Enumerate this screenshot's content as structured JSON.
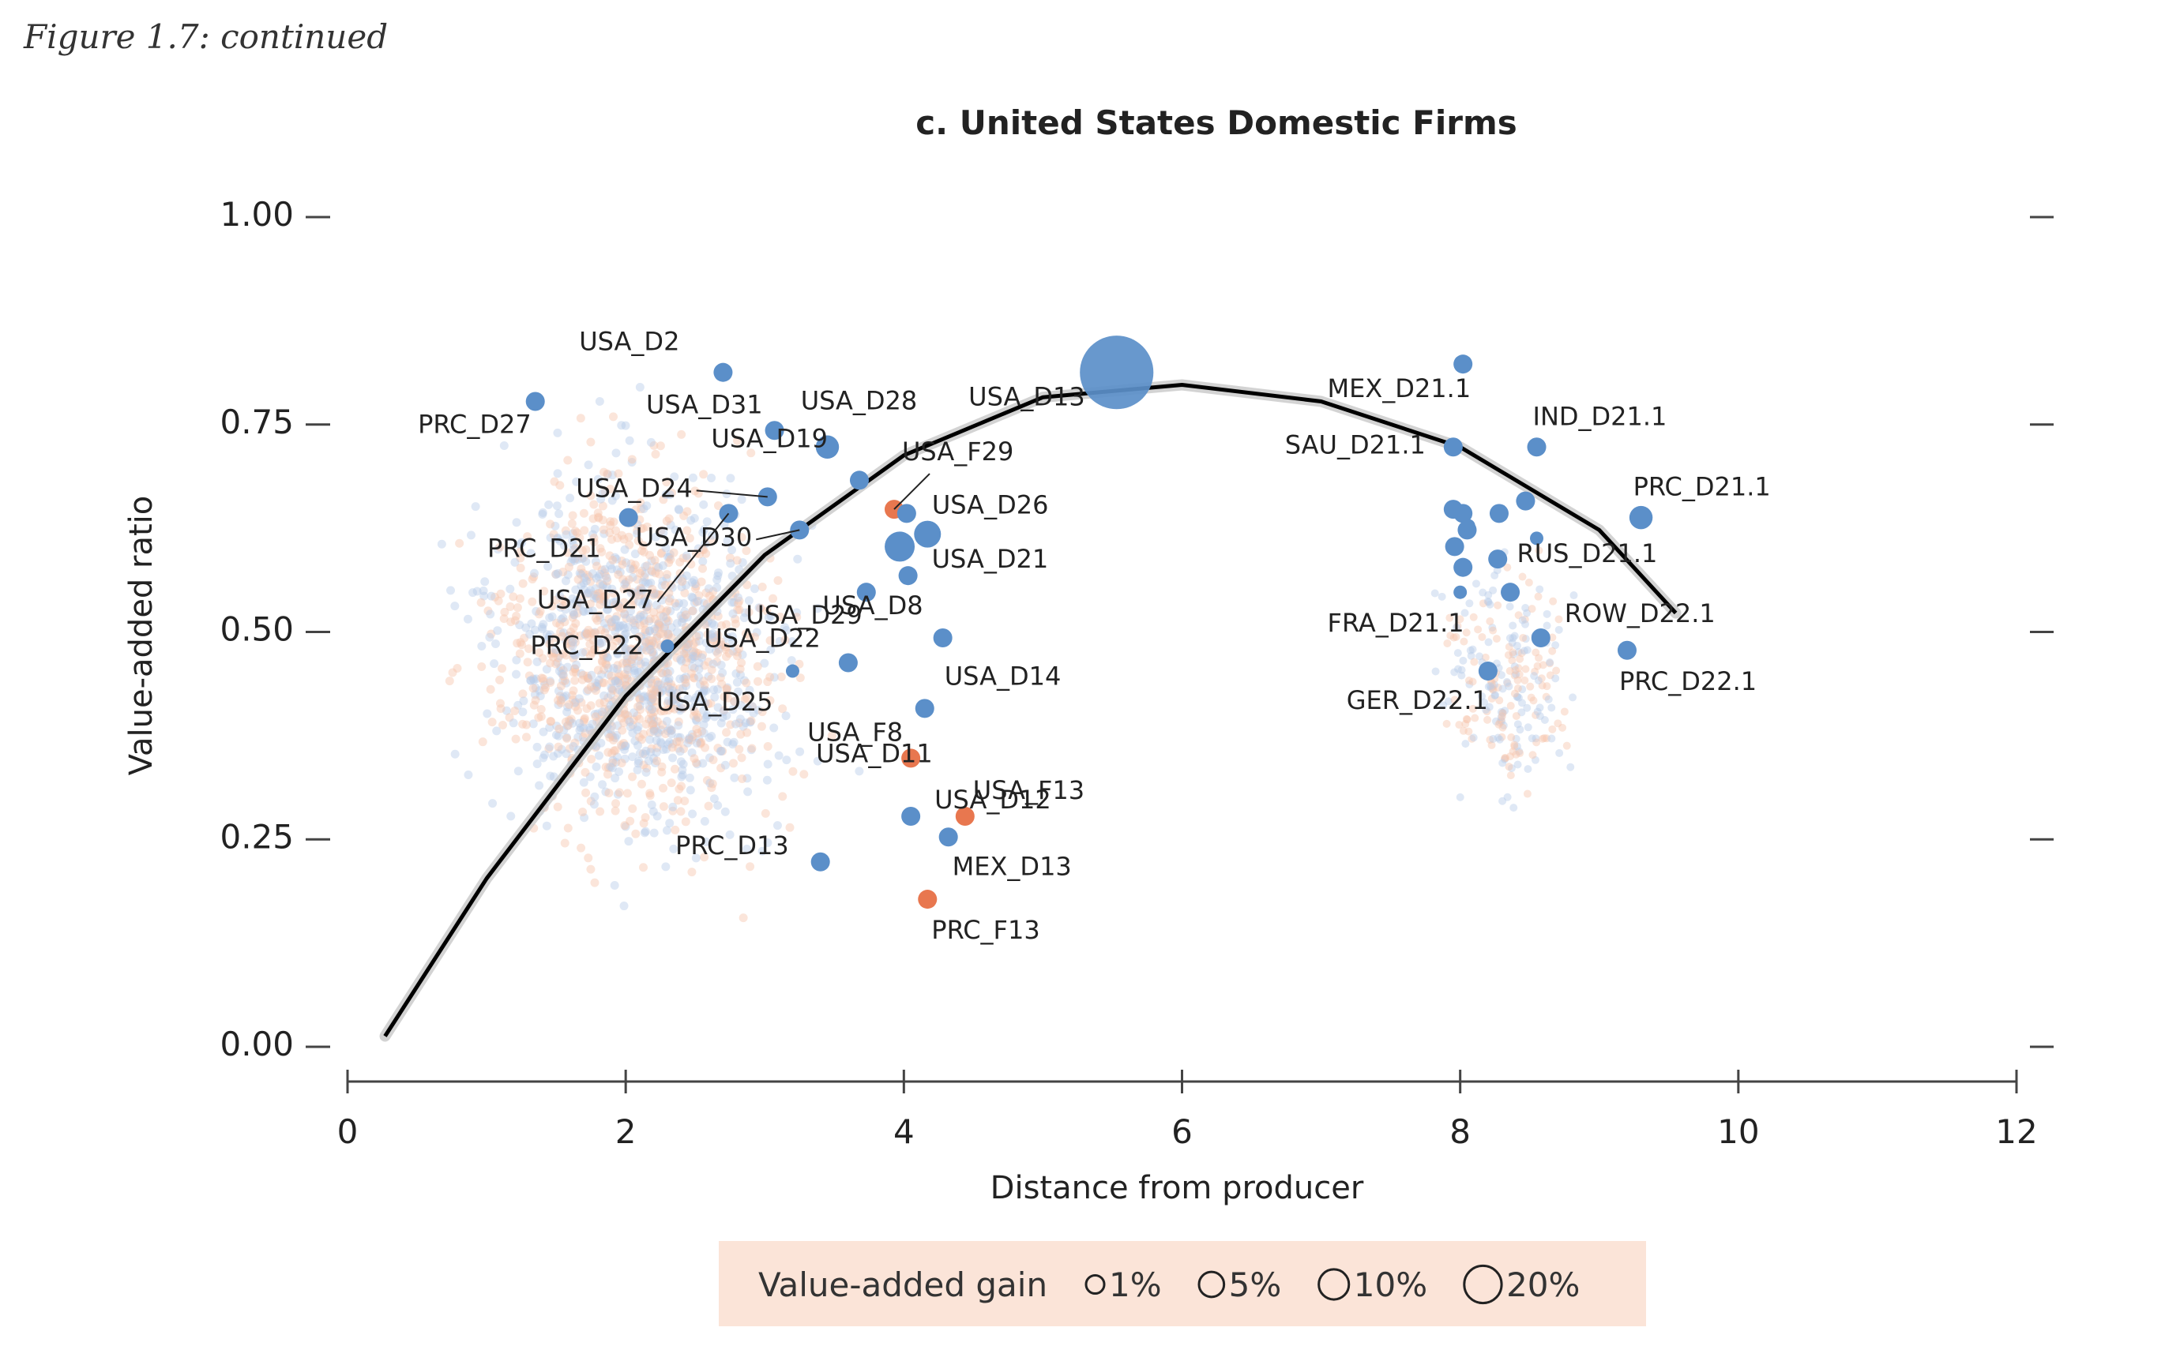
{
  "figure_caption": "Figure 1.7: continued",
  "chart_data": {
    "type": "scatter",
    "title": "c. United States Domestic Firms",
    "xlabel": "Distance from producer",
    "ylabel": "Value-added ratio",
    "xlim": [
      0,
      12
    ],
    "ylim": [
      0,
      1
    ],
    "x_ticks": [
      "0",
      "2",
      "4",
      "6",
      "8",
      "10",
      "12"
    ],
    "y_ticks": [
      "0.00",
      "0.25",
      "0.50",
      "0.75",
      "1.00"
    ],
    "colors": {
      "domestic": "#5b8fc9",
      "foreign": "#e8774f",
      "curve": "#000000",
      "background_domestic": "#b9cde8",
      "background_foreign": "#f6c5ad"
    },
    "legend": {
      "title": "Value-added gain",
      "entries": [
        {
          "label": "1%",
          "value": 1
        },
        {
          "label": "5%",
          "value": 5
        },
        {
          "label": "10%",
          "value": 10
        },
        {
          "label": "20%",
          "value": 20
        }
      ]
    },
    "fit_curve": [
      {
        "x": 0.27,
        "y": 0.01
      },
      {
        "x": 1.0,
        "y": 0.2
      },
      {
        "x": 2.0,
        "y": 0.42
      },
      {
        "x": 3.0,
        "y": 0.59
      },
      {
        "x": 4.0,
        "y": 0.71
      },
      {
        "x": 5.0,
        "y": 0.78
      },
      {
        "x": 6.0,
        "y": 0.795
      },
      {
        "x": 7.0,
        "y": 0.775
      },
      {
        "x": 8.0,
        "y": 0.72
      },
      {
        "x": 9.0,
        "y": 0.62
      },
      {
        "x": 9.55,
        "y": 0.52
      }
    ],
    "points": [
      {
        "label": "USA_D2",
        "x": 2.7,
        "y": 0.81,
        "type": "domestic",
        "gain": 2
      },
      {
        "label": "PRC_D27",
        "x": 1.35,
        "y": 0.775,
        "type": "domestic",
        "gain": 2
      },
      {
        "label": "USA_D31",
        "x": 3.07,
        "y": 0.74,
        "type": "domestic",
        "gain": 2
      },
      {
        "label": "USA_D28",
        "x": 3.45,
        "y": 0.72,
        "type": "domestic",
        "gain": 3
      },
      {
        "label": "USA_D13",
        "x": 5.53,
        "y": 0.81,
        "type": "domestic",
        "gain": 30
      },
      {
        "label": "USA_F29",
        "x": 3.93,
        "y": 0.645,
        "type": "foreign",
        "gain": 2
      },
      {
        "label": "USA_D19",
        "x": 3.68,
        "y": 0.68,
        "type": "domestic",
        "gain": 2
      },
      {
        "label": "USA_D24",
        "x": 3.02,
        "y": 0.66,
        "type": "domestic",
        "gain": 2
      },
      {
        "label": "USA_D26",
        "x": 4.02,
        "y": 0.64,
        "type": "domestic",
        "gain": 2
      },
      {
        "label": "PRC_D21",
        "x": 2.02,
        "y": 0.635,
        "type": "domestic",
        "gain": 2
      },
      {
        "label": "USA_D30",
        "x": 3.25,
        "y": 0.62,
        "type": "domestic",
        "gain": 2
      },
      {
        "label": "USA_D27",
        "x": 2.74,
        "y": 0.64,
        "type": "domestic",
        "gain": 2
      },
      {
        "label": "",
        "x": 4.17,
        "y": 0.615,
        "type": "domestic",
        "gain": 4
      },
      {
        "label": "",
        "x": 3.97,
        "y": 0.6,
        "type": "domestic",
        "gain": 5
      },
      {
        "label": "USA_D29",
        "x": 3.73,
        "y": 0.545,
        "type": "domestic",
        "gain": 2
      },
      {
        "label": "USA_D21",
        "x": 4.03,
        "y": 0.565,
        "type": "domestic",
        "gain": 2
      },
      {
        "label": "USA_D8",
        "x": 4.28,
        "y": 0.49,
        "type": "domestic",
        "gain": 2
      },
      {
        "label": "USA_D22",
        "x": 3.6,
        "y": 0.46,
        "type": "domestic",
        "gain": 2
      },
      {
        "label": "PRC_D22",
        "x": 2.3,
        "y": 0.48,
        "type": "domestic",
        "gain": 1
      },
      {
        "label": "USA_D25",
        "x": 3.2,
        "y": 0.45,
        "type": "domestic",
        "gain": 1
      },
      {
        "label": "USA_D14",
        "x": 4.15,
        "y": 0.405,
        "type": "domestic",
        "gain": 2
      },
      {
        "label": "USA_F8",
        "x": 4.05,
        "y": 0.345,
        "type": "foreign",
        "gain": 2
      },
      {
        "label": "USA_D12",
        "x": 4.05,
        "y": 0.275,
        "type": "domestic",
        "gain": 2
      },
      {
        "label": "USA_F13",
        "x": 4.44,
        "y": 0.275,
        "type": "foreign",
        "gain": 2
      },
      {
        "label": "USA_D11",
        "x": 4.32,
        "y": 0.25,
        "type": "domestic",
        "gain": 2
      },
      {
        "label": "PRC_D13",
        "x": 3.4,
        "y": 0.22,
        "type": "domestic",
        "gain": 2
      },
      {
        "label": "MEX_D13",
        "x": 4.32,
        "y": 0.25,
        "type": "domestic",
        "gain": 0
      },
      {
        "label": "PRC_F13",
        "x": 4.17,
        "y": 0.175,
        "type": "foreign",
        "gain": 2
      },
      {
        "label": "MEX_D21.1",
        "x": 8.02,
        "y": 0.82,
        "type": "domestic",
        "gain": 2
      },
      {
        "label": "IND_D21.1",
        "x": 8.55,
        "y": 0.72,
        "type": "domestic",
        "gain": 2
      },
      {
        "label": "SAU_D21.1",
        "x": 7.95,
        "y": 0.72,
        "type": "domestic",
        "gain": 2
      },
      {
        "label": "PRC_D21.1",
        "x": 9.3,
        "y": 0.635,
        "type": "domestic",
        "gain": 3
      },
      {
        "label": "RUS_D21.1",
        "x": 8.55,
        "y": 0.61,
        "type": "domestic",
        "gain": 1
      },
      {
        "label": "FRA_D21.1",
        "x": 8.0,
        "y": 0.545,
        "type": "domestic",
        "gain": 1
      },
      {
        "label": "ROW_D22.1",
        "x": 8.58,
        "y": 0.49,
        "type": "domestic",
        "gain": 2
      },
      {
        "label": "PRC_D22.1",
        "x": 9.2,
        "y": 0.475,
        "type": "domestic",
        "gain": 2
      },
      {
        "label": "GER_D22.1",
        "x": 8.2,
        "y": 0.45,
        "type": "domestic",
        "gain": 2
      },
      {
        "label": "",
        "x": 7.95,
        "y": 0.645,
        "type": "domestic",
        "gain": 2
      },
      {
        "label": "",
        "x": 8.02,
        "y": 0.64,
        "type": "domestic",
        "gain": 2
      },
      {
        "label": "",
        "x": 8.05,
        "y": 0.62,
        "type": "domestic",
        "gain": 2
      },
      {
        "label": "",
        "x": 8.06,
        "y": 0.625,
        "type": "domestic",
        "gain": 1
      },
      {
        "label": "",
        "x": 8.28,
        "y": 0.64,
        "type": "domestic",
        "gain": 2
      },
      {
        "label": "",
        "x": 8.47,
        "y": 0.655,
        "type": "domestic",
        "gain": 2
      },
      {
        "label": "",
        "x": 7.96,
        "y": 0.6,
        "type": "domestic",
        "gain": 2
      },
      {
        "label": "",
        "x": 8.02,
        "y": 0.575,
        "type": "domestic",
        "gain": 2
      },
      {
        "label": "",
        "x": 8.27,
        "y": 0.585,
        "type": "domestic",
        "gain": 2
      },
      {
        "label": "",
        "x": 8.36,
        "y": 0.545,
        "type": "domestic",
        "gain": 2
      }
    ]
  }
}
